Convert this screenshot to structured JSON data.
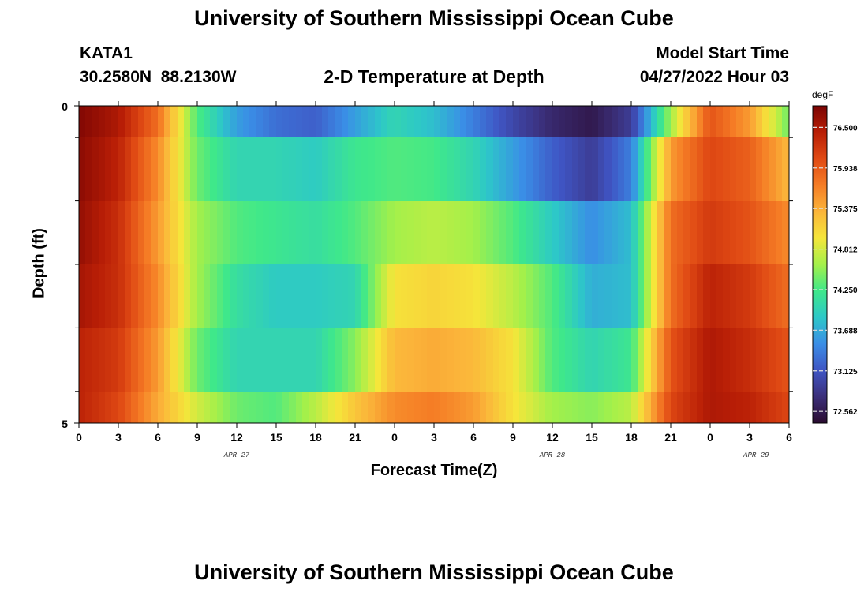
{
  "page": {
    "title": "University of Southern Mississippi Ocean Cube",
    "station_id": "KATA1",
    "station_coords": "30.2580N  88.2130W",
    "model_start_label": "Model Start Time",
    "model_start_value": "04/27/2022 Hour 03",
    "footer_title": "University of Southern Mississippi Ocean Cube"
  },
  "chart_data": {
    "type": "heatmap",
    "title": "2-D Temperature at Depth",
    "xlabel": "Forecast Time(Z)",
    "ylabel": "Depth (ft)",
    "x_tick_labels": [
      "0",
      "3",
      "6",
      "9",
      "12",
      "15",
      "18",
      "21",
      "0",
      "3",
      "6",
      "9",
      "12",
      "15",
      "18",
      "21",
      "0",
      "3",
      "6"
    ],
    "date_labels": [
      "APR 27",
      "APR 28",
      "APR 29"
    ],
    "y_tick_labels": [
      "0",
      "5"
    ],
    "x_range_hours": [
      0,
      54
    ],
    "y_range_ft": [
      0,
      5
    ],
    "colorbar": {
      "unit": "degF",
      "labels": [
        "76.500",
        "75.938",
        "75.375",
        "74.812",
        "74.250",
        "73.688",
        "73.125",
        "72.562"
      ],
      "range": [
        72.4,
        76.8
      ],
      "colors": [
        "#2a0a2e",
        "#3b2f7a",
        "#3f55c4",
        "#3a8ee6",
        "#2dc8c8",
        "#3fe88a",
        "#a4f04a",
        "#f5e63a",
        "#fbb53a",
        "#f57c25",
        "#e04a14",
        "#b81e06",
        "#7a0403"
      ]
    },
    "layer_depths_ft": [
      0,
      0.5,
      1.5,
      2.5,
      3.5,
      4.5,
      5
    ],
    "time_keyframes_hours": [
      0,
      3,
      6,
      9,
      12,
      15,
      18,
      21,
      24,
      27,
      30,
      33,
      36,
      39,
      42,
      45,
      48,
      51,
      54
    ],
    "temperatures_degF": [
      [
        76.75,
        76.5,
        75.8,
        74.3,
        73.6,
        73.3,
        73.2,
        73.6,
        74.0,
        73.8,
        73.4,
        73.0,
        72.7,
        72.55,
        72.9,
        74.6,
        76.0,
        75.5,
        74.4
      ],
      [
        76.7,
        76.4,
        75.6,
        74.4,
        74.0,
        74.0,
        73.9,
        74.2,
        74.3,
        74.25,
        74.0,
        73.6,
        73.2,
        72.9,
        73.4,
        75.5,
        76.1,
        75.9,
        75.3
      ],
      [
        76.65,
        76.3,
        75.5,
        74.6,
        74.3,
        74.2,
        74.1,
        74.3,
        74.6,
        74.7,
        74.6,
        74.3,
        73.9,
        73.5,
        73.8,
        75.8,
        76.2,
        76.0,
        75.6
      ],
      [
        76.55,
        76.3,
        75.6,
        74.6,
        74.1,
        73.9,
        73.9,
        74.0,
        75.0,
        75.1,
        75.0,
        74.7,
        74.3,
        73.7,
        73.8,
        75.8,
        76.4,
        76.2,
        75.8
      ],
      [
        76.4,
        76.2,
        75.5,
        74.4,
        74.0,
        74.0,
        74.0,
        74.5,
        75.3,
        75.4,
        75.3,
        75.0,
        74.3,
        74.0,
        74.2,
        76.0,
        76.5,
        76.3,
        76.0
      ],
      [
        76.4,
        76.1,
        75.4,
        74.8,
        74.4,
        74.3,
        74.7,
        75.2,
        75.6,
        75.7,
        75.5,
        75.0,
        74.6,
        74.5,
        74.7,
        76.1,
        76.5,
        76.4,
        76.1
      ]
    ]
  }
}
